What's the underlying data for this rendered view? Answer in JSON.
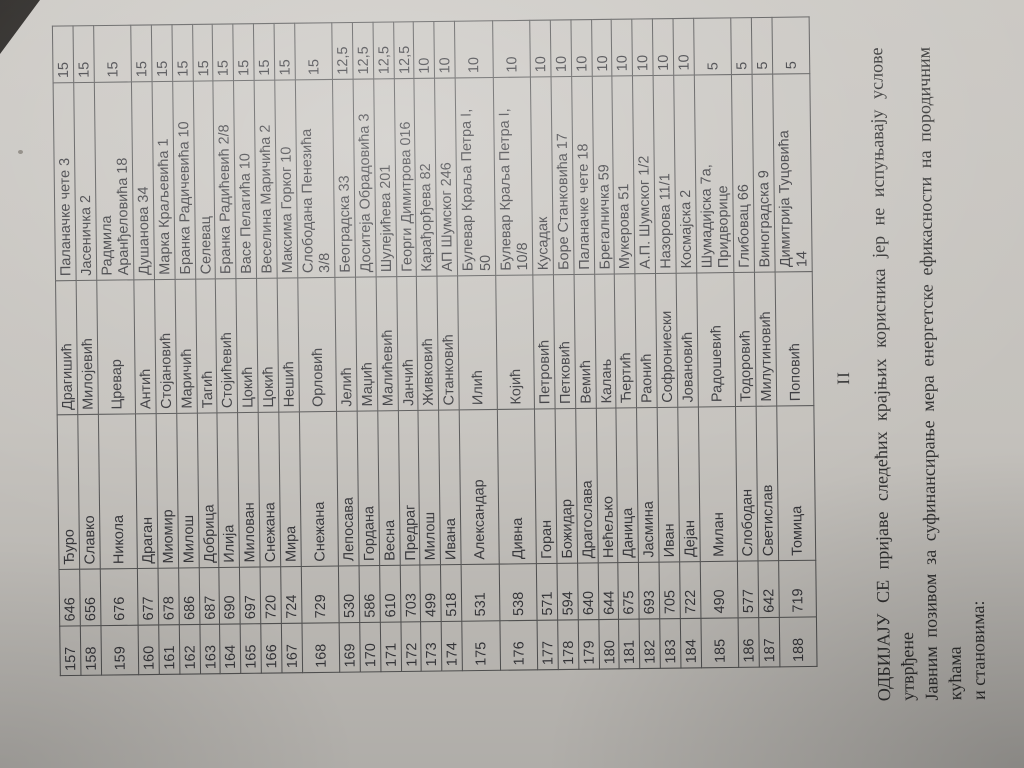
{
  "document": {
    "table": {
      "rows": [
        {
          "num": "157",
          "id": "646",
          "first_name": "Ђуро",
          "last_name": "Драгишић",
          "address": "Паланачке чете 3",
          "points": "15"
        },
        {
          "num": "158",
          "id": "656",
          "first_name": "Славко",
          "last_name": "Милојевић",
          "address": "Јасеничка 2",
          "points": "15"
        },
        {
          "num": "159",
          "id": "676",
          "first_name": "Никола",
          "last_name": "Цревар",
          "address": "Радмила\nАранђеловића 18",
          "points": "15"
        },
        {
          "num": "160",
          "id": "677",
          "first_name": "Драган",
          "last_name": "Антић",
          "address": "Душанова 34",
          "points": "15"
        },
        {
          "num": "161",
          "id": "678",
          "first_name": "Миомир",
          "last_name": "Стојановић",
          "address": "Марка Краљевића 1",
          "points": "15"
        },
        {
          "num": "162",
          "id": "686",
          "first_name": "Милош",
          "last_name": "Маричић",
          "address": "Бранка Радичевића 10",
          "points": "15"
        },
        {
          "num": "163",
          "id": "687",
          "first_name": "Добрица",
          "last_name": "Тагић",
          "address": "Селевац",
          "points": "15"
        },
        {
          "num": "164",
          "id": "690",
          "first_name": "Илија",
          "last_name": "Стојићевић",
          "address": "Бранка Радићевић 2/8",
          "points": "15"
        },
        {
          "num": "165",
          "id": "697",
          "first_name": "Милован",
          "last_name": "Цокић",
          "address": "Васе Пелагића 10",
          "points": "15"
        },
        {
          "num": "166",
          "id": "720",
          "first_name": "Снежана",
          "last_name": "Цокић",
          "address": "Веселина Маричића 2",
          "points": "15"
        },
        {
          "num": "167",
          "id": "724",
          "first_name": "Мира",
          "last_name": "Нешић",
          "address": "Максима Горког 10",
          "points": "15"
        },
        {
          "num": "168",
          "id": "729",
          "first_name": "Снежана",
          "last_name": "Орловић",
          "address": "Слободана Пенезића\n3/8",
          "points": "15"
        },
        {
          "num": "169",
          "id": "530",
          "first_name": "Лепосава",
          "last_name": "Јелић",
          "address": "Београдска 33",
          "points": "12,5"
        },
        {
          "num": "170",
          "id": "586",
          "first_name": "Гордана",
          "last_name": "Маџић",
          "address": "Доситеја Обрадовића 3",
          "points": "12,5"
        },
        {
          "num": "171",
          "id": "610",
          "first_name": "Весна",
          "last_name": "Малићевић",
          "address": "Шулејићева 201",
          "points": "12,5"
        },
        {
          "num": "172",
          "id": "703",
          "first_name": "Предраг",
          "last_name": "Јанчић",
          "address": "Георги Димитрова 016",
          "points": "12,5"
        },
        {
          "num": "173",
          "id": "499",
          "first_name": "Милош",
          "last_name": "Живковић",
          "address": "Карађорђева 82",
          "points": "10"
        },
        {
          "num": "174",
          "id": "518",
          "first_name": "Ивана",
          "last_name": "Станковић",
          "address": "АП Шумског 246",
          "points": "10"
        },
        {
          "num": "175",
          "id": "531",
          "first_name": "Александар",
          "last_name": "Илић",
          "address": "Булевар Краља Петра I,\n50",
          "points": "10"
        },
        {
          "num": "176",
          "id": "538",
          "first_name": "Дивна",
          "last_name": "Којић",
          "address": "Булевар Краља Петра I,\n10/8",
          "points": "10"
        },
        {
          "num": "177",
          "id": "571",
          "first_name": "Горан",
          "last_name": "Петровић",
          "address": "Кусадак",
          "points": "10"
        },
        {
          "num": "178",
          "id": "594",
          "first_name": "Божидар",
          "last_name": "Петковић",
          "address": "Боре Станковића 17",
          "points": "10"
        },
        {
          "num": "179",
          "id": "640",
          "first_name": "Драгослава",
          "last_name": "Вемић",
          "address": "Паланачке чете 18",
          "points": "10"
        },
        {
          "num": "180",
          "id": "644",
          "first_name": "Нећељко",
          "last_name": "Калањ",
          "address": "Брегалничка 59",
          "points": "10"
        },
        {
          "num": "181",
          "id": "675",
          "first_name": "Даница",
          "last_name": "Ћертић",
          "address": "Мукерова 51",
          "points": "10"
        },
        {
          "num": "182",
          "id": "693",
          "first_name": "Јасмина",
          "last_name": "Раонић",
          "address": "А.П. Шумског 1/2",
          "points": "10"
        },
        {
          "num": "183",
          "id": "705",
          "first_name": "Иван",
          "last_name": "Софрониески",
          "address": "Назорова 11/1",
          "points": "10"
        },
        {
          "num": "184",
          "id": "722",
          "first_name": "Дејан",
          "last_name": "Јовановић",
          "address": "Космајска 2",
          "points": "10"
        },
        {
          "num": "185",
          "id": "490",
          "first_name": "Милан",
          "last_name": "Радошевић",
          "address": "Шумадијска 7а,\nПридворице",
          "points": "5"
        },
        {
          "num": "186",
          "id": "577",
          "first_name": "Слободан",
          "last_name": "Тодоровић",
          "address": "Глибовац 66",
          "points": "5"
        },
        {
          "num": "187",
          "id": "642",
          "first_name": "Светислав",
          "last_name": "Милутиновић",
          "address": "Виноградска 9",
          "points": "5"
        },
        {
          "num": "188",
          "id": "719",
          "first_name": "Томица",
          "last_name": "Поповић",
          "address": "Димитрија Туцовића\n14",
          "points": "5"
        }
      ]
    },
    "section_numeral": "II",
    "paragraph_lines": [
      "ОДБИЈАЈУ СЕ пријаве следећих крајњих корисника јер не испуњавају услове утврђене",
      "Јавним позивом за суфинансирање мера енергетске ефикасности на породичним кућама",
      "и становима:"
    ]
  },
  "colors": {
    "paper": "#c8c5c0",
    "background": "#1b1815",
    "ink": "#38383c",
    "table_border": "#565656",
    "paragraph_ink": "#333333"
  }
}
